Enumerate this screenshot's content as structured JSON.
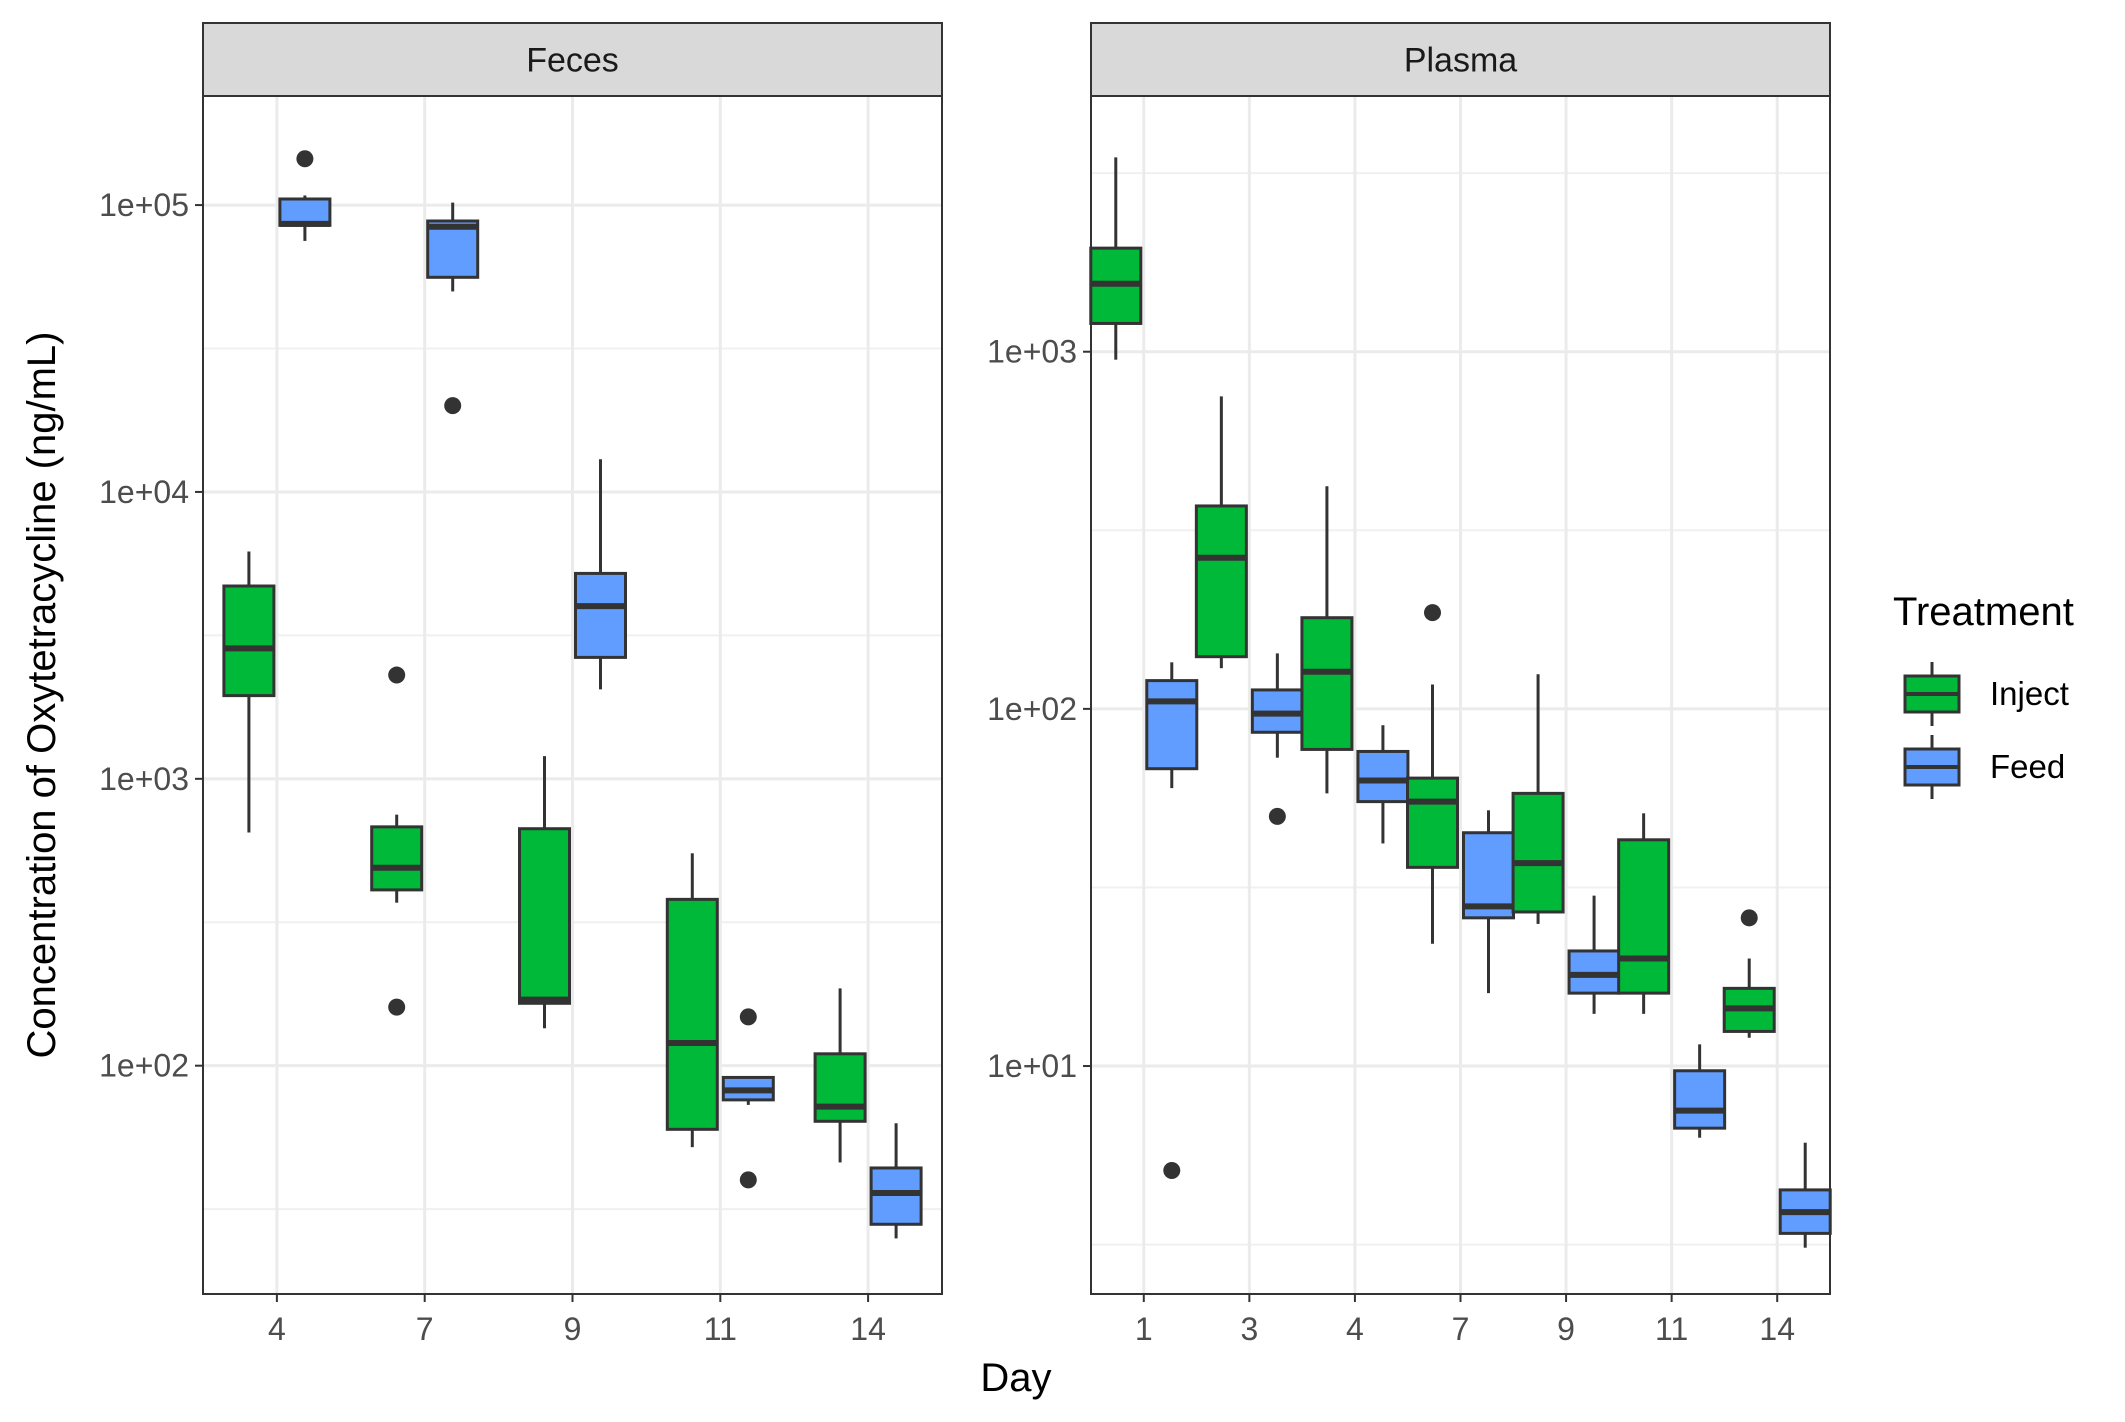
{
  "chart_data": {
    "type": "boxplot",
    "xlabel": "Day",
    "ylabel": "Concentration of Oxytetracycline (ng/mL)",
    "y_scale": "log10",
    "legend": {
      "title": "Treatment",
      "position": "right",
      "entries": [
        {
          "name": "Inject",
          "color": "#00B938"
        },
        {
          "name": "Feed",
          "color": "#619CFF"
        }
      ]
    },
    "grid": true,
    "panels": [
      {
        "title": "Feces",
        "categories": [
          "4",
          "7",
          "9",
          "11",
          "14"
        ],
        "y_ticks": [
          {
            "value": 100,
            "label": "1e+02"
          },
          {
            "value": 1000,
            "label": "1e+03"
          },
          {
            "value": 10000,
            "label": "1e+04"
          },
          {
            "value": 100000,
            "label": "1e+05"
          }
        ],
        "ylim": [
          16,
          240000
        ],
        "boxes": [
          {
            "day": "4",
            "series": "Inject",
            "min": 650,
            "q1": 1950,
            "median": 2850,
            "q3": 4700,
            "max": 6200,
            "outliers": []
          },
          {
            "day": "4",
            "series": "Feed",
            "min": 75000,
            "q1": 85000,
            "median": 86000,
            "q3": 105000,
            "max": 108000,
            "outliers": [
              145000
            ]
          },
          {
            "day": "7",
            "series": "Inject",
            "min": 370,
            "q1": 410,
            "median": 490,
            "q3": 680,
            "max": 750,
            "outliers": [
              2300,
              160
            ]
          },
          {
            "day": "7",
            "series": "Feed",
            "min": 50000,
            "q1": 56000,
            "median": 84000,
            "q3": 88000,
            "max": 102000,
            "outliers": [
              20000
            ]
          },
          {
            "day": "9",
            "series": "Inject",
            "min": 135,
            "q1": 165,
            "median": 170,
            "q3": 670,
            "max": 1200,
            "outliers": []
          },
          {
            "day": "9",
            "series": "Feed",
            "min": 2050,
            "q1": 2650,
            "median": 4000,
            "q3": 5200,
            "max": 13000,
            "outliers": []
          },
          {
            "day": "11",
            "series": "Inject",
            "min": 52,
            "q1": 60,
            "median": 120,
            "q3": 380,
            "max": 550,
            "outliers": []
          },
          {
            "day": "11",
            "series": "Feed",
            "min": 73,
            "q1": 76,
            "median": 82,
            "q3": 91,
            "max": 92,
            "outliers": [
              148,
              40
            ]
          },
          {
            "day": "14",
            "series": "Inject",
            "min": 46,
            "q1": 64,
            "median": 72,
            "q3": 110,
            "max": 186,
            "outliers": []
          },
          {
            "day": "14",
            "series": "Feed",
            "min": 25,
            "q1": 28,
            "median": 36,
            "q3": 44,
            "max": 63,
            "outliers": []
          }
        ]
      },
      {
        "title": "Plasma",
        "categories": [
          "1",
          "3",
          "4",
          "7",
          "9",
          "11",
          "14"
        ],
        "y_ticks": [
          {
            "value": 10,
            "label": "1e+01"
          },
          {
            "value": 100,
            "label": "1e+02"
          },
          {
            "value": 1000,
            "label": "1e+03"
          }
        ],
        "ylim": [
          2.3,
          5200
        ],
        "boxes": [
          {
            "day": "1",
            "series": "Inject",
            "min": 950,
            "q1": 1200,
            "median": 1550,
            "q3": 1950,
            "max": 3500,
            "outliers": []
          },
          {
            "day": "1",
            "series": "Feed",
            "min": 60,
            "q1": 68,
            "median": 105,
            "q3": 120,
            "max": 135,
            "outliers": [
              5.1
            ]
          },
          {
            "day": "3",
            "series": "Inject",
            "min": 130,
            "q1": 140,
            "median": 265,
            "q3": 370,
            "max": 750,
            "outliers": []
          },
          {
            "day": "3",
            "series": "Feed",
            "min": 73,
            "q1": 86,
            "median": 97,
            "q3": 113,
            "max": 143,
            "outliers": [
              50
            ]
          },
          {
            "day": "4",
            "series": "Inject",
            "min": 58,
            "q1": 77,
            "median": 127,
            "q3": 180,
            "max": 420,
            "outliers": []
          },
          {
            "day": "4",
            "series": "Feed",
            "min": 42,
            "q1": 55,
            "median": 63,
            "q3": 76,
            "max": 90,
            "outliers": []
          },
          {
            "day": "7",
            "series": "Inject",
            "min": 22,
            "q1": 36,
            "median": 55,
            "q3": 64,
            "max": 117,
            "outliers": [
              186
            ]
          },
          {
            "day": "7",
            "series": "Feed",
            "min": 16,
            "q1": 26,
            "median": 28,
            "q3": 45,
            "max": 52,
            "outliers": []
          },
          {
            "day": "9",
            "series": "Inject",
            "min": 25,
            "q1": 27,
            "median": 37,
            "q3": 58,
            "max": 125,
            "outliers": []
          },
          {
            "day": "9",
            "series": "Feed",
            "min": 14,
            "q1": 16,
            "median": 18,
            "q3": 21,
            "max": 30,
            "outliers": []
          },
          {
            "day": "11",
            "series": "Inject",
            "min": 14,
            "q1": 16,
            "median": 20,
            "q3": 43,
            "max": 51,
            "outliers": []
          },
          {
            "day": "11",
            "series": "Feed",
            "min": 6.3,
            "q1": 6.7,
            "median": 7.5,
            "q3": 9.7,
            "max": 11.5,
            "outliers": []
          },
          {
            "day": "14",
            "series": "Inject",
            "min": 12,
            "q1": 12.5,
            "median": 14.5,
            "q3": 16.5,
            "max": 20,
            "outliers": [
              26
            ]
          },
          {
            "day": "14",
            "series": "Feed",
            "min": 3.1,
            "q1": 3.4,
            "median": 3.9,
            "q3": 4.5,
            "max": 6.1,
            "outliers": []
          }
        ]
      }
    ]
  }
}
